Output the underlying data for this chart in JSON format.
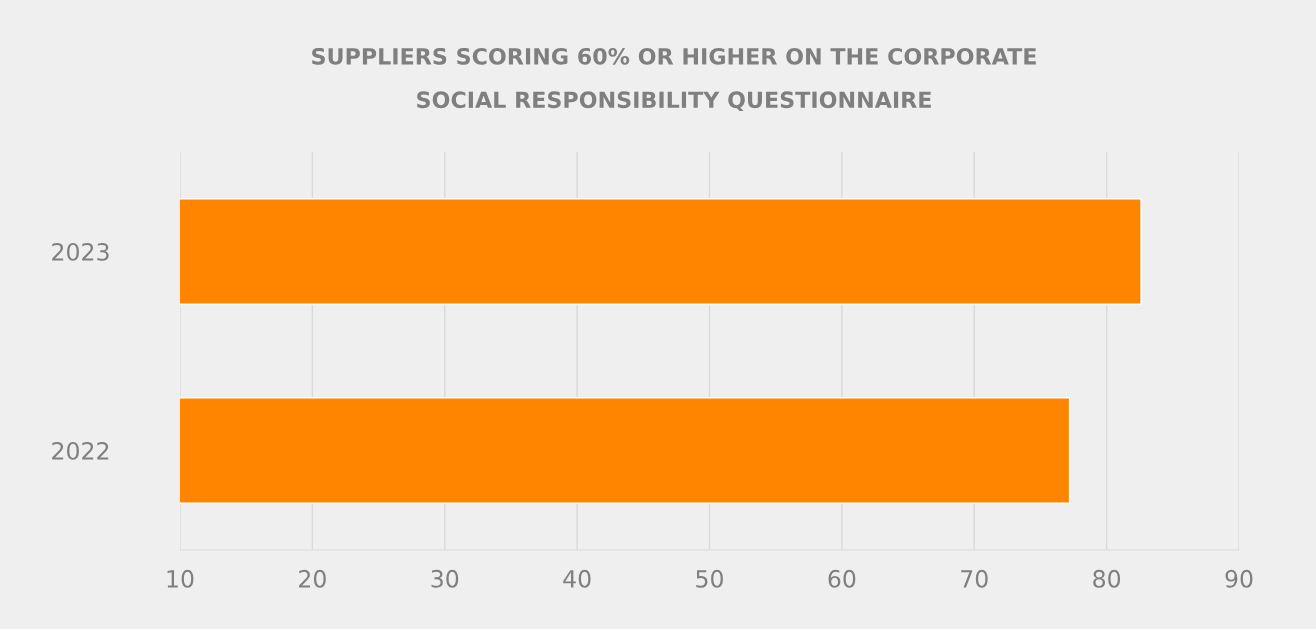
{
  "chart_data": {
    "type": "bar",
    "orientation": "horizontal",
    "title": "SUPPLIERS SCORING 60% OR HIGHER ON THE CORPORATE SOCIAL RESPONSIBILITY QUESTIONNAIRE",
    "categories": [
      "2023",
      "2022"
    ],
    "series": [
      {
        "color": "#ff8500",
        "values": [
          82.6,
          77.2
        ]
      }
    ],
    "xlim": [
      10,
      90
    ],
    "xticks": [
      10,
      20,
      30,
      40,
      50,
      60,
      70,
      80,
      90
    ],
    "grid": "x"
  }
}
